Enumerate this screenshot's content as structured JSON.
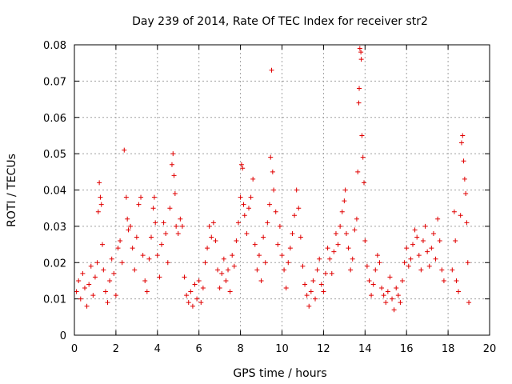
{
  "chart_data": {
    "type": "scatter",
    "title": "Day 239 of 2014, Rate Of TEC Index for receiver str2",
    "xlabel": "GPS time / hours",
    "ylabel": "ROTI / TECUs",
    "xlim": [
      0,
      20
    ],
    "ylim": [
      0,
      0.08
    ],
    "xticks": [
      0,
      2,
      4,
      6,
      8,
      10,
      12,
      14,
      16,
      18,
      20
    ],
    "yticks": [
      0,
      0.01,
      0.02,
      0.03,
      0.04,
      0.05,
      0.06,
      0.07,
      0.08
    ],
    "xtick_labels": [
      "0",
      "2",
      "4",
      "6",
      "8",
      "10",
      "12",
      "14",
      "16",
      "18",
      "20"
    ],
    "ytick_labels": [
      "0",
      "0.01",
      "0.02",
      "0.03",
      "0.04",
      "0.05",
      "0.06",
      "0.07",
      "0.08"
    ],
    "grid": true,
    "marker": "+",
    "marker_color": "#e00000",
    "series": [
      {
        "name": "ROTI",
        "points": [
          [
            0.1,
            0.012
          ],
          [
            0.2,
            0.015
          ],
          [
            0.3,
            0.01
          ],
          [
            0.4,
            0.017
          ],
          [
            0.5,
            0.013
          ],
          [
            0.6,
            0.008
          ],
          [
            0.7,
            0.014
          ],
          [
            0.8,
            0.019
          ],
          [
            0.9,
            0.011
          ],
          [
            1.0,
            0.016
          ],
          [
            1.1,
            0.02
          ],
          [
            1.15,
            0.034
          ],
          [
            1.2,
            0.042
          ],
          [
            1.25,
            0.038
          ],
          [
            1.3,
            0.036
          ],
          [
            1.35,
            0.025
          ],
          [
            1.4,
            0.018
          ],
          [
            1.5,
            0.012
          ],
          [
            1.6,
            0.009
          ],
          [
            1.7,
            0.015
          ],
          [
            1.8,
            0.021
          ],
          [
            1.9,
            0.017
          ],
          [
            2.0,
            0.011
          ],
          [
            2.1,
            0.024
          ],
          [
            2.2,
            0.026
          ],
          [
            2.3,
            0.02
          ],
          [
            2.4,
            0.051
          ],
          [
            2.5,
            0.038
          ],
          [
            2.55,
            0.032
          ],
          [
            2.6,
            0.029
          ],
          [
            2.7,
            0.03
          ],
          [
            2.8,
            0.024
          ],
          [
            2.9,
            0.018
          ],
          [
            3.0,
            0.027
          ],
          [
            3.1,
            0.036
          ],
          [
            3.2,
            0.038
          ],
          [
            3.3,
            0.022
          ],
          [
            3.4,
            0.015
          ],
          [
            3.5,
            0.012
          ],
          [
            3.6,
            0.021
          ],
          [
            3.7,
            0.027
          ],
          [
            3.8,
            0.035
          ],
          [
            3.85,
            0.038
          ],
          [
            3.9,
            0.031
          ],
          [
            4.0,
            0.022
          ],
          [
            4.1,
            0.016
          ],
          [
            4.2,
            0.025
          ],
          [
            4.3,
            0.031
          ],
          [
            4.4,
            0.028
          ],
          [
            4.5,
            0.02
          ],
          [
            4.6,
            0.035
          ],
          [
            4.7,
            0.047
          ],
          [
            4.75,
            0.05
          ],
          [
            4.8,
            0.044
          ],
          [
            4.85,
            0.039
          ],
          [
            4.9,
            0.03
          ],
          [
            5.0,
            0.028
          ],
          [
            5.1,
            0.032
          ],
          [
            5.2,
            0.03
          ],
          [
            5.3,
            0.016
          ],
          [
            5.4,
            0.011
          ],
          [
            5.5,
            0.009
          ],
          [
            5.6,
            0.012
          ],
          [
            5.7,
            0.008
          ],
          [
            5.8,
            0.014
          ],
          [
            5.9,
            0.01
          ],
          [
            6.0,
            0.015
          ],
          [
            6.1,
            0.009
          ],
          [
            6.2,
            0.013
          ],
          [
            6.3,
            0.02
          ],
          [
            6.4,
            0.024
          ],
          [
            6.5,
            0.03
          ],
          [
            6.6,
            0.027
          ],
          [
            6.7,
            0.031
          ],
          [
            6.8,
            0.026
          ],
          [
            6.9,
            0.018
          ],
          [
            7.0,
            0.013
          ],
          [
            7.1,
            0.017
          ],
          [
            7.2,
            0.021
          ],
          [
            7.3,
            0.015
          ],
          [
            7.4,
            0.018
          ],
          [
            7.5,
            0.012
          ],
          [
            7.6,
            0.022
          ],
          [
            7.7,
            0.019
          ],
          [
            7.8,
            0.026
          ],
          [
            7.9,
            0.031
          ],
          [
            8.0,
            0.038
          ],
          [
            8.05,
            0.047
          ],
          [
            8.1,
            0.046
          ],
          [
            8.15,
            0.036
          ],
          [
            8.2,
            0.033
          ],
          [
            8.3,
            0.028
          ],
          [
            8.4,
            0.035
          ],
          [
            8.5,
            0.038
          ],
          [
            8.6,
            0.043
          ],
          [
            8.7,
            0.025
          ],
          [
            8.8,
            0.018
          ],
          [
            8.9,
            0.022
          ],
          [
            9.0,
            0.015
          ],
          [
            9.1,
            0.027
          ],
          [
            9.2,
            0.02
          ],
          [
            9.3,
            0.031
          ],
          [
            9.4,
            0.036
          ],
          [
            9.45,
            0.049
          ],
          [
            9.5,
            0.073
          ],
          [
            9.55,
            0.045
          ],
          [
            9.6,
            0.04
          ],
          [
            9.7,
            0.034
          ],
          [
            9.8,
            0.025
          ],
          [
            9.9,
            0.03
          ],
          [
            10.0,
            0.022
          ],
          [
            10.1,
            0.018
          ],
          [
            10.2,
            0.013
          ],
          [
            10.3,
            0.02
          ],
          [
            10.4,
            0.024
          ],
          [
            10.5,
            0.028
          ],
          [
            10.6,
            0.033
          ],
          [
            10.7,
            0.04
          ],
          [
            10.8,
            0.035
          ],
          [
            10.9,
            0.027
          ],
          [
            11.0,
            0.019
          ],
          [
            11.1,
            0.014
          ],
          [
            11.2,
            0.011
          ],
          [
            11.3,
            0.008
          ],
          [
            11.4,
            0.012
          ],
          [
            11.5,
            0.015
          ],
          [
            11.6,
            0.01
          ],
          [
            11.7,
            0.018
          ],
          [
            11.8,
            0.021
          ],
          [
            11.9,
            0.014
          ],
          [
            12.0,
            0.012
          ],
          [
            12.1,
            0.017
          ],
          [
            12.2,
            0.024
          ],
          [
            12.3,
            0.021
          ],
          [
            12.4,
            0.017
          ],
          [
            12.5,
            0.023
          ],
          [
            12.6,
            0.028
          ],
          [
            12.7,
            0.025
          ],
          [
            12.8,
            0.03
          ],
          [
            12.9,
            0.034
          ],
          [
            13.0,
            0.037
          ],
          [
            13.05,
            0.04
          ],
          [
            13.1,
            0.028
          ],
          [
            13.2,
            0.024
          ],
          [
            13.3,
            0.018
          ],
          [
            13.4,
            0.021
          ],
          [
            13.5,
            0.029
          ],
          [
            13.6,
            0.032
          ],
          [
            13.65,
            0.045
          ],
          [
            13.7,
            0.064
          ],
          [
            13.72,
            0.068
          ],
          [
            13.75,
            0.079
          ],
          [
            13.8,
            0.078
          ],
          [
            13.82,
            0.076
          ],
          [
            13.85,
            0.055
          ],
          [
            13.9,
            0.049
          ],
          [
            13.95,
            0.042
          ],
          [
            14.0,
            0.026
          ],
          [
            14.1,
            0.019
          ],
          [
            14.2,
            0.015
          ],
          [
            14.3,
            0.011
          ],
          [
            14.4,
            0.014
          ],
          [
            14.5,
            0.018
          ],
          [
            14.6,
            0.022
          ],
          [
            14.7,
            0.02
          ],
          [
            14.8,
            0.013
          ],
          [
            14.9,
            0.011
          ],
          [
            15.0,
            0.009
          ],
          [
            15.1,
            0.012
          ],
          [
            15.2,
            0.016
          ],
          [
            15.3,
            0.01
          ],
          [
            15.4,
            0.007
          ],
          [
            15.5,
            0.013
          ],
          [
            15.6,
            0.011
          ],
          [
            15.7,
            0.009
          ],
          [
            15.8,
            0.015
          ],
          [
            15.9,
            0.02
          ],
          [
            16.0,
            0.024
          ],
          [
            16.1,
            0.019
          ],
          [
            16.2,
            0.021
          ],
          [
            16.3,
            0.025
          ],
          [
            16.4,
            0.029
          ],
          [
            16.5,
            0.027
          ],
          [
            16.6,
            0.022
          ],
          [
            16.7,
            0.018
          ],
          [
            16.8,
            0.026
          ],
          [
            16.9,
            0.03
          ],
          [
            17.0,
            0.023
          ],
          [
            17.1,
            0.019
          ],
          [
            17.2,
            0.024
          ],
          [
            17.3,
            0.028
          ],
          [
            17.4,
            0.021
          ],
          [
            17.5,
            0.032
          ],
          [
            17.6,
            0.026
          ],
          [
            17.7,
            0.018
          ],
          [
            17.8,
            0.015
          ],
          [
            18.2,
            0.018
          ],
          [
            18.3,
            0.034
          ],
          [
            18.35,
            0.026
          ],
          [
            18.4,
            0.015
          ],
          [
            18.5,
            0.012
          ],
          [
            18.6,
            0.033
          ],
          [
            18.65,
            0.053
          ],
          [
            18.7,
            0.055
          ],
          [
            18.75,
            0.048
          ],
          [
            18.8,
            0.043
          ],
          [
            18.85,
            0.039
          ],
          [
            18.9,
            0.031
          ],
          [
            18.95,
            0.02
          ],
          [
            19.0,
            0.009
          ]
        ]
      }
    ]
  }
}
